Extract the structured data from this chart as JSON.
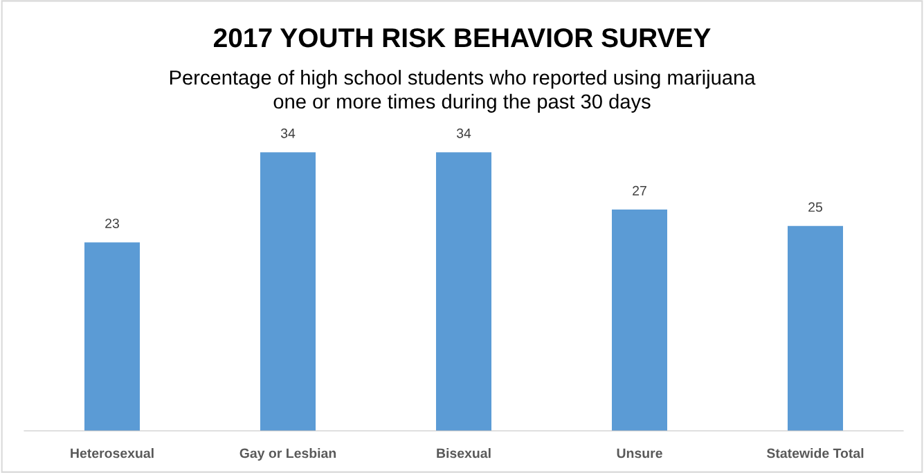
{
  "chart_data": {
    "type": "bar",
    "title": "2017 YOUTH RISK BEHAVIOR SURVEY",
    "subtitle": "Percentage of high school students who reported using marijuana\none or more times during the past 30 days",
    "categories": [
      "Heterosexual",
      "Gay or Lesbian",
      "Bisexual",
      "Unsure",
      "Statewide Total"
    ],
    "values": [
      23,
      34,
      34,
      27,
      25
    ],
    "color": "#5b9bd5",
    "data_labels": true,
    "grid": false,
    "legend": false
  }
}
